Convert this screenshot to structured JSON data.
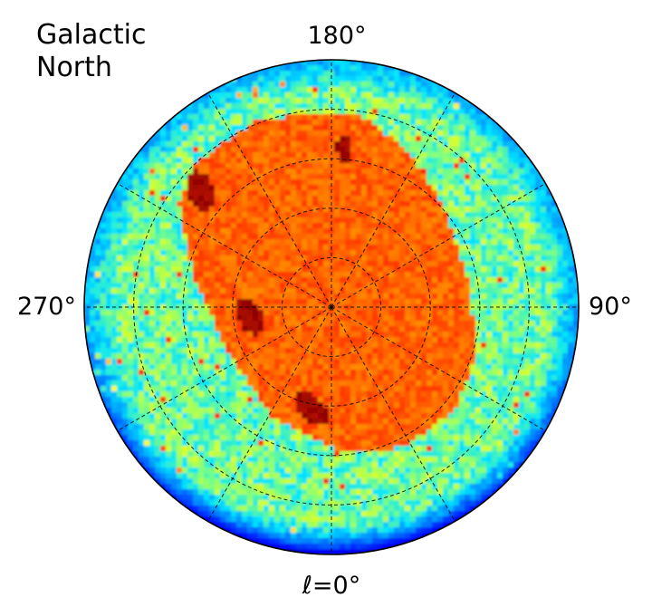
{
  "chart_data": {
    "type": "heatmap",
    "projection": "polar",
    "title_lines": [
      "Galactic",
      "North"
    ],
    "longitude_labels": {
      "top": "180°",
      "right": "90°",
      "left": "270°",
      "bottom": "ℓ=0°"
    },
    "grid": true,
    "colormap": "jet",
    "colormap_stops": [
      "#00007f",
      "#0000ff",
      "#0080ff",
      "#00e5ff",
      "#7fff7f",
      "#ffff00",
      "#ff8c00",
      "#ff2000",
      "#7f0000"
    ],
    "background_level": 0.48,
    "survey_footprint_level": 0.8,
    "dense_patch_level": 0.97,
    "edge_level": 0.12
  }
}
